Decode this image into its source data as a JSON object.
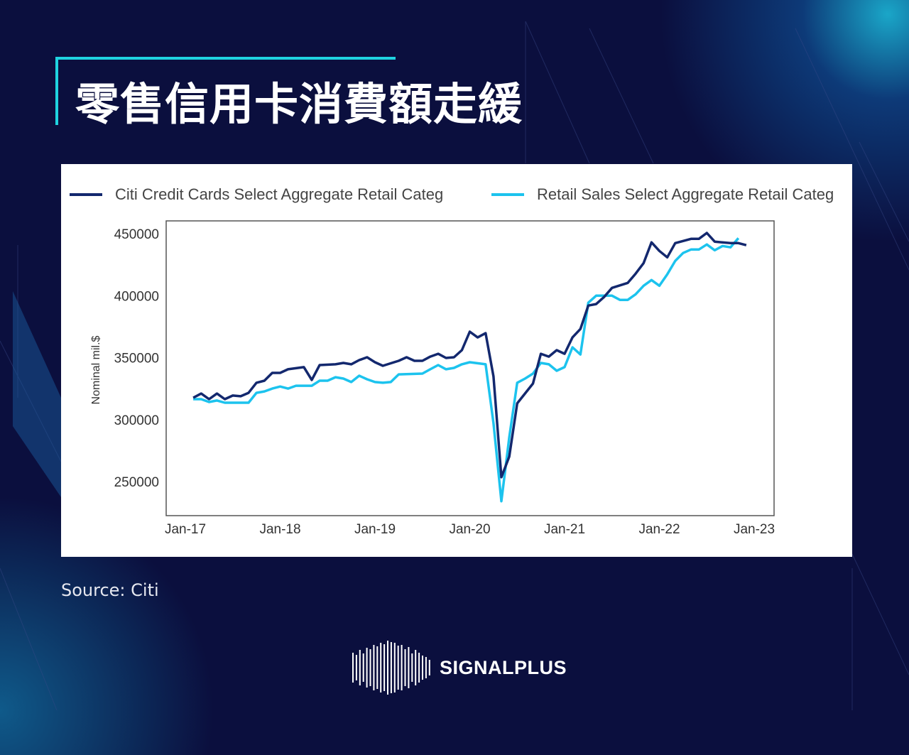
{
  "title": "零售信用卡消費額走緩",
  "source": "Source:  Citi",
  "brand": "SIGNALPLUS",
  "colors": {
    "background": "#0b0f3e",
    "accent": "#1fd3e0",
    "citi": "#13286e",
    "retail": "#1cc3ee"
  },
  "chart_data": {
    "type": "line",
    "title": "",
    "xlabel": "",
    "ylabel": "Nominal mil.$",
    "x_unit": "months since Jan-17",
    "xlim": [
      -2.3,
      74.5
    ],
    "ylim": [
      222000,
      461000
    ],
    "x_ticks": [
      0,
      12,
      24,
      36,
      48,
      60,
      72
    ],
    "x_tick_labels": [
      "Jan-17",
      "Jan-18",
      "Jan-19",
      "Jan-20",
      "Jan-21",
      "Jan-22",
      "Jan-23"
    ],
    "y_ticks": [
      450000,
      400000,
      350000,
      300000,
      250000
    ],
    "y_tick_labels": [
      "450000",
      "400000",
      "350000",
      "300000",
      "250000"
    ],
    "grid": false,
    "legend_position": "top",
    "series": [
      {
        "name": "Citi Credit Cards Select Aggregate Retail Categ",
        "color": "#13286e",
        "points": [
          [
            1,
            317600
          ],
          [
            2,
            321000
          ],
          [
            3,
            316500
          ],
          [
            4,
            321000
          ],
          [
            5,
            316500
          ],
          [
            6,
            319400
          ],
          [
            7,
            318800
          ],
          [
            8,
            321600
          ],
          [
            9,
            329700
          ],
          [
            10,
            331400
          ],
          [
            11,
            337700
          ],
          [
            12,
            337700
          ],
          [
            13,
            340600
          ],
          [
            15,
            342300
          ],
          [
            16,
            332000
          ],
          [
            17,
            344000
          ],
          [
            19,
            344600
          ],
          [
            20,
            345700
          ],
          [
            21,
            344600
          ],
          [
            22,
            348000
          ],
          [
            23,
            350300
          ],
          [
            24,
            346300
          ],
          [
            25,
            343400
          ],
          [
            27,
            347400
          ],
          [
            28,
            350300
          ],
          [
            29,
            347400
          ],
          [
            30,
            347400
          ],
          [
            31,
            350800
          ],
          [
            32,
            353100
          ],
          [
            33,
            349700
          ],
          [
            34,
            350300
          ],
          [
            35,
            356000
          ],
          [
            36,
            370900
          ],
          [
            37,
            366300
          ],
          [
            38,
            369700
          ],
          [
            39,
            334800
          ],
          [
            40,
            253500
          ],
          [
            41,
            270100
          ],
          [
            42,
            313100
          ],
          [
            44,
            329100
          ],
          [
            45,
            353100
          ],
          [
            46,
            350800
          ],
          [
            47,
            356000
          ],
          [
            48,
            353100
          ],
          [
            49,
            366300
          ],
          [
            50,
            373100
          ],
          [
            51,
            392000
          ],
          [
            52,
            393200
          ],
          [
            53,
            398900
          ],
          [
            54,
            406300
          ],
          [
            56,
            410300
          ],
          [
            57,
            417800
          ],
          [
            58,
            426300
          ],
          [
            59,
            443000
          ],
          [
            60,
            436100
          ],
          [
            61,
            430900
          ],
          [
            62,
            442400
          ],
          [
            64,
            445800
          ],
          [
            65,
            445800
          ],
          [
            66,
            450600
          ],
          [
            67,
            443600
          ],
          [
            69,
            442400
          ],
          [
            70,
            442400
          ],
          [
            71,
            440700
          ]
        ]
      },
      {
        "name": "Retail Sales Select Aggregate Retail Categ",
        "color": "#1cc3ee",
        "points": [
          [
            1,
            316500
          ],
          [
            2,
            316500
          ],
          [
            3,
            314200
          ],
          [
            4,
            315400
          ],
          [
            5,
            313600
          ],
          [
            6,
            313600
          ],
          [
            7,
            313600
          ],
          [
            8,
            313600
          ],
          [
            9,
            321600
          ],
          [
            10,
            322700
          ],
          [
            11,
            325000
          ],
          [
            12,
            326700
          ],
          [
            13,
            325000
          ],
          [
            14,
            327300
          ],
          [
            16,
            327300
          ],
          [
            17,
            331400
          ],
          [
            18,
            331400
          ],
          [
            19,
            334200
          ],
          [
            20,
            333100
          ],
          [
            21,
            330300
          ],
          [
            22,
            335400
          ],
          [
            23,
            332500
          ],
          [
            24,
            330300
          ],
          [
            25,
            329700
          ],
          [
            26,
            330300
          ],
          [
            27,
            336500
          ],
          [
            30,
            337100
          ],
          [
            31,
            340600
          ],
          [
            32,
            344000
          ],
          [
            33,
            340600
          ],
          [
            34,
            341700
          ],
          [
            35,
            344600
          ],
          [
            36,
            346300
          ],
          [
            38,
            344600
          ],
          [
            39,
            297100
          ],
          [
            40,
            234100
          ],
          [
            41,
            285600
          ],
          [
            42,
            329700
          ],
          [
            43,
            333100
          ],
          [
            44,
            337100
          ],
          [
            45,
            345700
          ],
          [
            46,
            344600
          ],
          [
            47,
            339400
          ],
          [
            48,
            342300
          ],
          [
            49,
            358300
          ],
          [
            50,
            352500
          ],
          [
            51,
            394300
          ],
          [
            52,
            400000
          ],
          [
            54,
            400000
          ],
          [
            55,
            396600
          ],
          [
            56,
            396600
          ],
          [
            57,
            401100
          ],
          [
            58,
            408000
          ],
          [
            59,
            412600
          ],
          [
            60,
            408000
          ],
          [
            61,
            417200
          ],
          [
            62,
            428000
          ],
          [
            63,
            434400
          ],
          [
            64,
            437200
          ],
          [
            65,
            437200
          ],
          [
            66,
            441300
          ],
          [
            67,
            436600
          ],
          [
            68,
            440100
          ],
          [
            69,
            439000
          ],
          [
            70,
            446400
          ]
        ]
      }
    ]
  }
}
